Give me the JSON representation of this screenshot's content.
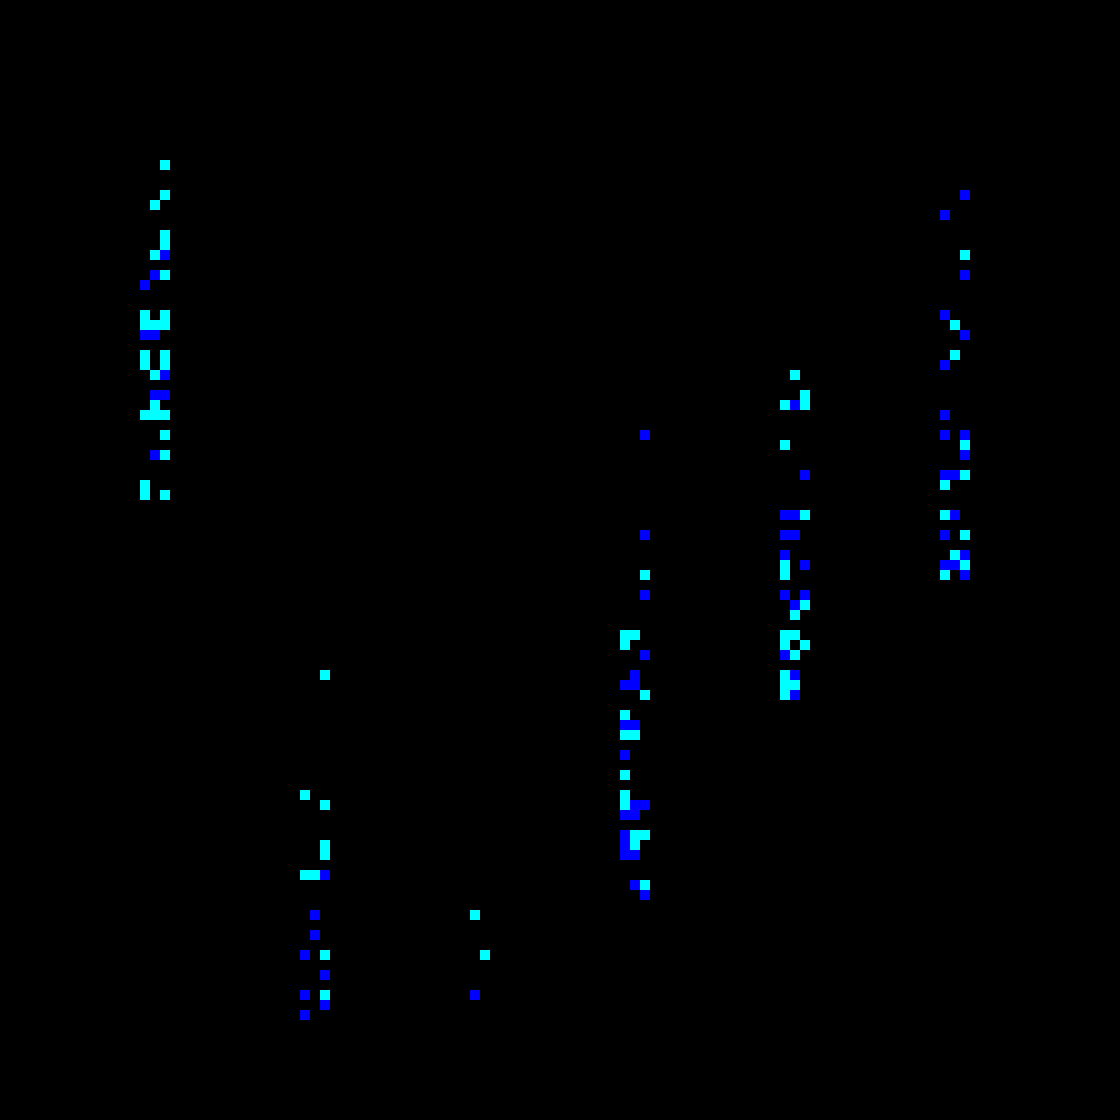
{
  "palette": {
    "background": "#000000",
    "cyan": "#00ffff",
    "blue": "#0000ff"
  },
  "grid": {
    "cols": 112,
    "rows": 112
  },
  "clusters": [
    {
      "name": "cluster-1",
      "cells": [
        [
          16,
          16,
          "c"
        ],
        [
          16,
          19,
          "c"
        ],
        [
          15,
          20,
          "c"
        ],
        [
          16,
          23,
          "c"
        ],
        [
          16,
          24,
          "c"
        ],
        [
          15,
          25,
          "c"
        ],
        [
          16,
          25,
          "b"
        ],
        [
          15,
          27,
          "b"
        ],
        [
          16,
          27,
          "c"
        ],
        [
          14,
          28,
          "b"
        ],
        [
          14,
          31,
          "c"
        ],
        [
          16,
          31,
          "c"
        ],
        [
          14,
          32,
          "c"
        ],
        [
          15,
          32,
          "c"
        ],
        [
          16,
          32,
          "c"
        ],
        [
          14,
          33,
          "b"
        ],
        [
          15,
          33,
          "b"
        ],
        [
          14,
          35,
          "c"
        ],
        [
          16,
          35,
          "c"
        ],
        [
          14,
          36,
          "c"
        ],
        [
          16,
          36,
          "c"
        ],
        [
          15,
          37,
          "c"
        ],
        [
          16,
          37,
          "b"
        ],
        [
          15,
          39,
          "b"
        ],
        [
          16,
          39,
          "b"
        ],
        [
          15,
          40,
          "c"
        ],
        [
          14,
          41,
          "c"
        ],
        [
          15,
          41,
          "c"
        ],
        [
          16,
          41,
          "c"
        ],
        [
          16,
          43,
          "c"
        ],
        [
          15,
          45,
          "b"
        ],
        [
          16,
          45,
          "c"
        ],
        [
          14,
          48,
          "c"
        ],
        [
          14,
          49,
          "c"
        ],
        [
          16,
          49,
          "c"
        ]
      ]
    },
    {
      "name": "cluster-2",
      "cells": [
        [
          32,
          67,
          "c"
        ],
        [
          30,
          79,
          "c"
        ],
        [
          32,
          80,
          "c"
        ],
        [
          32,
          84,
          "c"
        ],
        [
          32,
          85,
          "c"
        ],
        [
          30,
          87,
          "c"
        ],
        [
          31,
          87,
          "c"
        ],
        [
          32,
          87,
          "b"
        ],
        [
          31,
          91,
          "b"
        ],
        [
          31,
          93,
          "b"
        ],
        [
          30,
          95,
          "b"
        ],
        [
          32,
          95,
          "c"
        ],
        [
          32,
          97,
          "b"
        ],
        [
          30,
          99,
          "b"
        ],
        [
          32,
          99,
          "c"
        ],
        [
          32,
          100,
          "b"
        ],
        [
          30,
          101,
          "b"
        ]
      ]
    },
    {
      "name": "cluster-3",
      "cells": [
        [
          47,
          91,
          "c"
        ],
        [
          48,
          95,
          "c"
        ],
        [
          47,
          99,
          "b"
        ]
      ]
    },
    {
      "name": "cluster-4",
      "cells": [
        [
          64,
          43,
          "b"
        ],
        [
          64,
          53,
          "b"
        ],
        [
          64,
          57,
          "c"
        ],
        [
          64,
          59,
          "b"
        ],
        [
          62,
          63,
          "c"
        ],
        [
          63,
          63,
          "c"
        ],
        [
          62,
          64,
          "c"
        ],
        [
          64,
          65,
          "b"
        ],
        [
          63,
          67,
          "b"
        ],
        [
          62,
          68,
          "b"
        ],
        [
          63,
          68,
          "b"
        ],
        [
          64,
          69,
          "c"
        ],
        [
          62,
          71,
          "c"
        ],
        [
          62,
          72,
          "b"
        ],
        [
          63,
          72,
          "b"
        ],
        [
          62,
          73,
          "c"
        ],
        [
          63,
          73,
          "c"
        ],
        [
          62,
          75,
          "b"
        ],
        [
          62,
          77,
          "c"
        ],
        [
          62,
          79,
          "c"
        ],
        [
          62,
          80,
          "c"
        ],
        [
          63,
          80,
          "b"
        ],
        [
          64,
          80,
          "b"
        ],
        [
          62,
          81,
          "b"
        ],
        [
          63,
          81,
          "b"
        ],
        [
          62,
          83,
          "b"
        ],
        [
          63,
          83,
          "c"
        ],
        [
          64,
          83,
          "c"
        ],
        [
          62,
          84,
          "b"
        ],
        [
          63,
          84,
          "c"
        ],
        [
          62,
          85,
          "b"
        ],
        [
          63,
          85,
          "b"
        ],
        [
          63,
          88,
          "b"
        ],
        [
          64,
          88,
          "c"
        ],
        [
          64,
          89,
          "b"
        ]
      ]
    },
    {
      "name": "cluster-5",
      "cells": [
        [
          79,
          37,
          "c"
        ],
        [
          80,
          39,
          "c"
        ],
        [
          78,
          40,
          "c"
        ],
        [
          79,
          40,
          "b"
        ],
        [
          80,
          40,
          "c"
        ],
        [
          78,
          44,
          "c"
        ],
        [
          80,
          47,
          "b"
        ],
        [
          78,
          51,
          "b"
        ],
        [
          79,
          51,
          "b"
        ],
        [
          80,
          51,
          "c"
        ],
        [
          78,
          53,
          "b"
        ],
        [
          79,
          53,
          "b"
        ],
        [
          78,
          55,
          "b"
        ],
        [
          78,
          56,
          "c"
        ],
        [
          80,
          56,
          "b"
        ],
        [
          78,
          57,
          "c"
        ],
        [
          78,
          59,
          "b"
        ],
        [
          80,
          59,
          "b"
        ],
        [
          79,
          60,
          "b"
        ],
        [
          80,
          60,
          "c"
        ],
        [
          79,
          61,
          "c"
        ],
        [
          78,
          63,
          "c"
        ],
        [
          79,
          63,
          "c"
        ],
        [
          78,
          64,
          "c"
        ],
        [
          80,
          64,
          "c"
        ],
        [
          78,
          65,
          "b"
        ],
        [
          79,
          65,
          "c"
        ],
        [
          78,
          67,
          "c"
        ],
        [
          79,
          67,
          "b"
        ],
        [
          78,
          68,
          "c"
        ],
        [
          79,
          68,
          "c"
        ],
        [
          78,
          69,
          "c"
        ],
        [
          79,
          69,
          "b"
        ]
      ]
    },
    {
      "name": "cluster-6",
      "cells": [
        [
          96,
          19,
          "b"
        ],
        [
          94,
          21,
          "b"
        ],
        [
          96,
          25,
          "c"
        ],
        [
          96,
          27,
          "b"
        ],
        [
          94,
          31,
          "b"
        ],
        [
          95,
          32,
          "c"
        ],
        [
          96,
          33,
          "b"
        ],
        [
          95,
          35,
          "c"
        ],
        [
          94,
          36,
          "b"
        ],
        [
          94,
          41,
          "b"
        ],
        [
          94,
          43,
          "b"
        ],
        [
          96,
          43,
          "b"
        ],
        [
          96,
          44,
          "c"
        ],
        [
          96,
          45,
          "b"
        ],
        [
          94,
          47,
          "b"
        ],
        [
          95,
          47,
          "b"
        ],
        [
          96,
          47,
          "c"
        ],
        [
          94,
          48,
          "c"
        ],
        [
          94,
          51,
          "c"
        ],
        [
          95,
          51,
          "b"
        ],
        [
          94,
          53,
          "b"
        ],
        [
          96,
          53,
          "c"
        ],
        [
          95,
          55,
          "c"
        ],
        [
          96,
          55,
          "b"
        ],
        [
          94,
          56,
          "b"
        ],
        [
          95,
          56,
          "b"
        ],
        [
          96,
          56,
          "c"
        ],
        [
          94,
          57,
          "c"
        ],
        [
          96,
          57,
          "b"
        ]
      ]
    }
  ]
}
